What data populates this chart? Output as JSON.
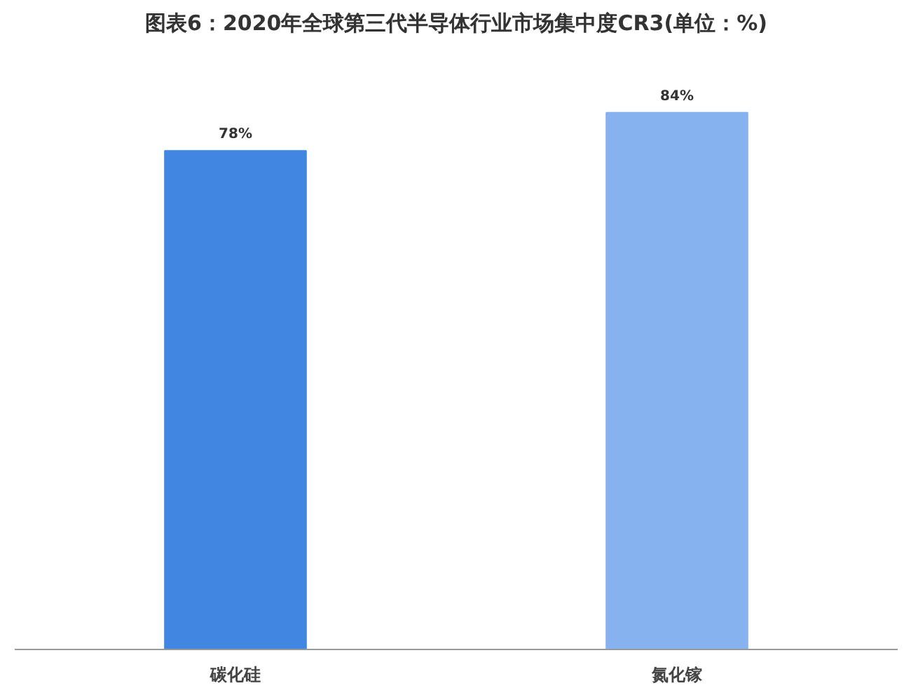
{
  "chart_data": {
    "type": "bar",
    "title": "图表6：2020年全球第三代半导体行业市场集中度CR3(单位：%)",
    "categories": [
      "碳化硅",
      "氮化镓"
    ],
    "values": [
      78,
      84
    ],
    "colors": [
      "#4186e0",
      "#86b3ef"
    ],
    "value_labels": [
      "78%",
      "84%"
    ],
    "grid": false
  }
}
